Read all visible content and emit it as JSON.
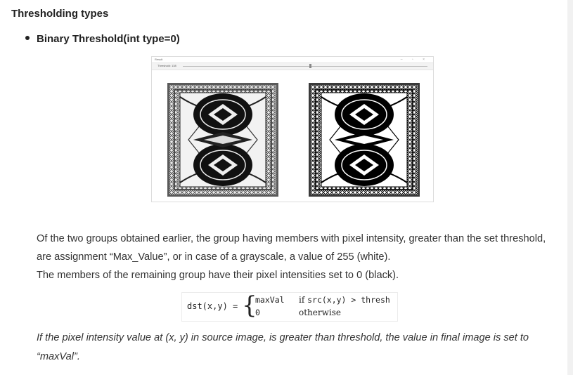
{
  "section": {
    "heading": "Thresholding types",
    "bullet": "Binary Threshold(int type=0)"
  },
  "screenshot": {
    "window_title": "Result",
    "window_controls": "–  ▫  ×",
    "trackbar_label": "Threshold: 138"
  },
  "paragraph": {
    "line1": "Of the two groups obtained earlier, the group having members with pixel intensity, greater than the set threshold, are assignment “Max_Value”, or in case of a grayscale, a value of 255 (white).",
    "line2": "The members of the remaining group have their pixel intensities set to 0 (black)."
  },
  "formula": {
    "lhs": "dst(x,y) =",
    "case1_value": "maxVal",
    "case1_condition_prefix": "if ",
    "case1_condition": "src(x,y) > thresh",
    "case2_value": "0",
    "case2_condition": "otherwise"
  },
  "note": "If the pixel intensity value at (x, y) in source image, is greater than threshold, the value in final image is set to “maxVal”.",
  "colors": {
    "text": "#333333",
    "heading": "#222222"
  }
}
